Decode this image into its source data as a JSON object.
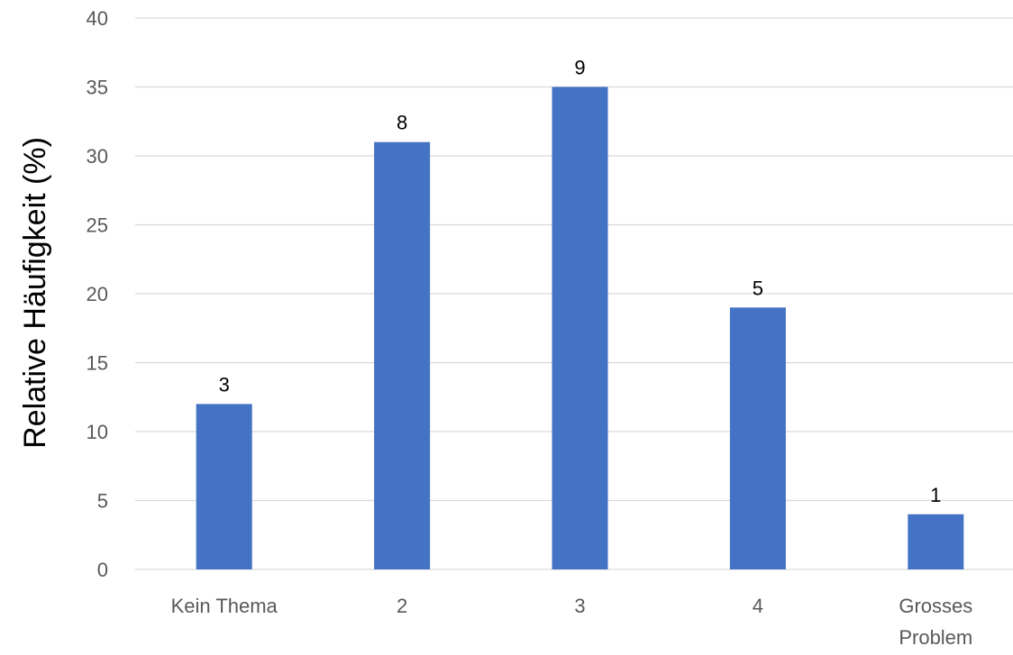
{
  "chart_data": {
    "type": "bar",
    "categories": [
      [
        "Kein Thema"
      ],
      [
        "2"
      ],
      [
        "3"
      ],
      [
        "4"
      ],
      [
        "Grosses",
        "Problem"
      ]
    ],
    "values": [
      12,
      31,
      35,
      19,
      4
    ],
    "data_labels": [
      "3",
      "8",
      "9",
      "5",
      "1"
    ],
    "title": "",
    "xlabel": "",
    "ylabel": "Relative Häufigkeit (%)",
    "ylim": [
      0,
      40
    ],
    "yticks": [
      0,
      5,
      10,
      15,
      20,
      25,
      30,
      35,
      40
    ],
    "grid": true,
    "legend": "none",
    "bar_color": "#4472C4",
    "grid_color": "#D9D9D9",
    "tick_label_color": "#595959"
  }
}
